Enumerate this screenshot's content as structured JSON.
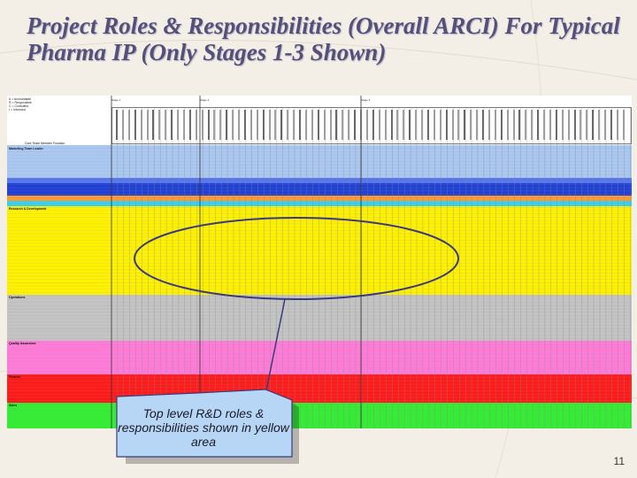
{
  "slide": {
    "title_line1": "Project Roles & Responsibilities (Overall ARCI) For Typical",
    "title_line2": "Pharma IP (Only Stages 1-3 Shown)",
    "page_number": "11"
  },
  "matrix": {
    "legend": [
      "A = Accountable",
      "R = Responsible",
      "C = Consulted",
      "I = Informed"
    ],
    "stage_labels": [
      "Stage 1",
      "Stage 2",
      "Stage 3"
    ],
    "function_header": "Core Team Member Function",
    "bands": [
      {
        "label": "Marketing Team Leader",
        "color": "#aac8f2"
      },
      {
        "label": "",
        "color": "#1f3fd6"
      },
      {
        "label": "Research & Development",
        "color": "#fff200"
      },
      {
        "label": "Operations",
        "color": "#c4c4c4"
      },
      {
        "label": "Quality Assurance",
        "color": "#ff7bd8"
      },
      {
        "label": "Finance",
        "color": "#ff1a1a"
      },
      {
        "label": "Sales",
        "color": "#33ee33"
      }
    ]
  },
  "callout": {
    "text": "Top level R&D roles & responsibilities shown in yellow area"
  }
}
